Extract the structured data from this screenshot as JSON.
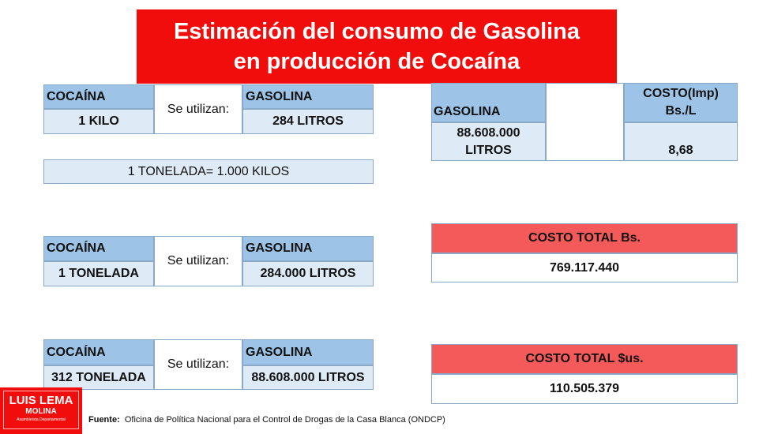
{
  "title": {
    "line1": "Estimación del consumo de Gasolina",
    "line2": "en producción de Cocaína"
  },
  "tables": [
    {
      "h1": "COCAÍNA",
      "v1": "1 KILO",
      "mid": "Se utilizan:",
      "h2": "GASOLINA",
      "v2": "284 LITROS"
    },
    {
      "h1": "COCAÍNA",
      "v1": "1 TONELADA",
      "mid": "Se utilizan:",
      "h2": "GASOLINA",
      "v2": "284.000 LITROS"
    },
    {
      "h1": "COCAÍNA",
      "v1": "312 TONELADA",
      "mid": "Se utilizan:",
      "h2": "GASOLINA",
      "v2": "88.608.000 LITROS"
    }
  ],
  "conversion": "1 TONELADA= 1.000 KILOS",
  "cost_table": {
    "h1": "GASOLINA",
    "v1a": "88.608.000",
    "v1b": "LITROS",
    "h2a": "COSTO(Imp)",
    "h2b": "Bs./L",
    "v2": "8,68"
  },
  "total_bs": {
    "label": "COSTO TOTAL Bs.",
    "value": "769.117.440"
  },
  "total_us": {
    "label": "COSTO TOTAL $us.",
    "value": "110.505.379"
  },
  "logo": {
    "line1": "LUIS LEMA",
    "line2": "MOLINA",
    "line3": "Asambleísta Departamental"
  },
  "source": {
    "label": "Fuente:",
    "text": "Oficina de Política Nacional para el Control de Drogas de la Casa Blanca (ONDCP)"
  }
}
